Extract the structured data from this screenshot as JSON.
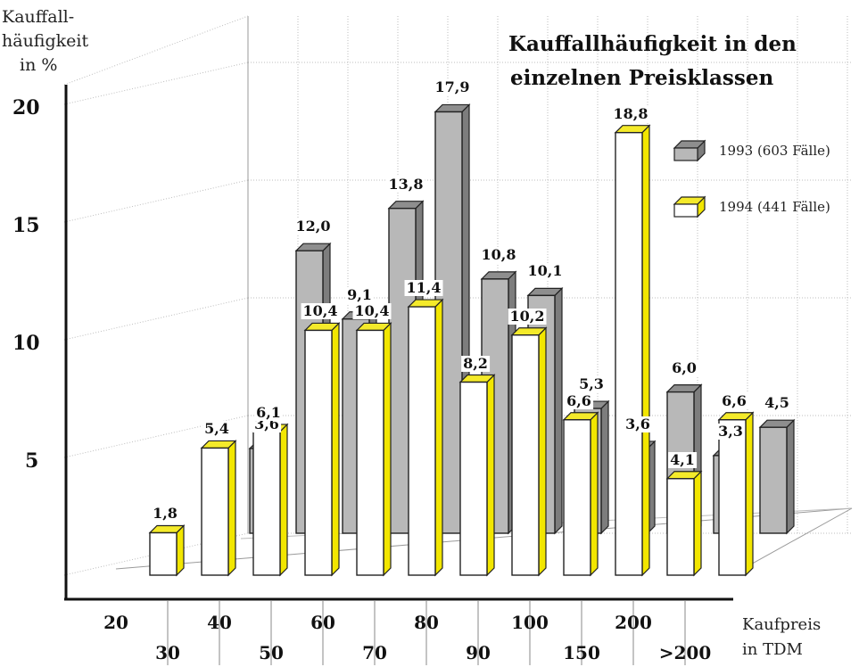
{
  "chart_data": {
    "type": "bar",
    "title_line1": "Kauffallhäufigkeit in den",
    "title_line2": "einzelnen Preisklassen",
    "ylabel_line1": "Kauffall-",
    "ylabel_line2": "häufigkeit",
    "ylabel_line3": "in %",
    "xlabel_line1": "Kaufpreis",
    "xlabel_line2": "in TDM",
    "categories": [
      "20",
      "30",
      "40",
      "50",
      "60",
      "70",
      "80",
      "90",
      "100",
      "150",
      "200",
      ">200"
    ],
    "yticks": [
      "5",
      "10",
      "15",
      "20"
    ],
    "ylim": [
      0,
      20
    ],
    "series": [
      {
        "name": "1993 (603 Fälle)",
        "values": [
          3.6,
          12.0,
          9.1,
          13.8,
          17.9,
          10.8,
          10.1,
          5.3,
          3.6,
          6.0,
          3.3,
          4.5
        ],
        "labels": [
          "3,6",
          "12,0",
          "9,1",
          "13,8",
          "17,9",
          "10,8",
          "10,1",
          "5,3",
          "3,6",
          "6,0",
          "3,3",
          "4,5"
        ],
        "color": "#b4b4b4"
      },
      {
        "name": "1994 (441 Fälle)",
        "values": [
          1.8,
          5.4,
          6.1,
          10.4,
          10.4,
          11.4,
          8.2,
          10.2,
          6.6,
          18.8,
          4.1,
          6.6
        ],
        "labels": [
          "1,8",
          "5,4",
          "6,1",
          "10,4",
          "10,4",
          "11,4",
          "8,2",
          "10,2",
          "6,6",
          "18,8",
          "4,1",
          "6,6"
        ],
        "color": "#ffffff",
        "accent": "#f2e600"
      }
    ],
    "grid": true,
    "legend": "top-right"
  }
}
